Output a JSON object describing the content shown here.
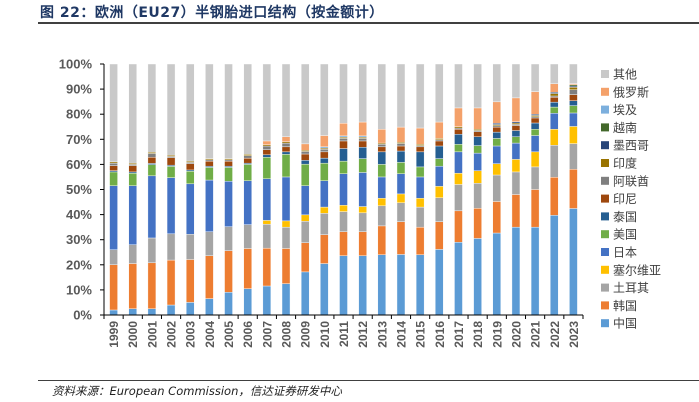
{
  "header": {
    "title": "图 22：欧洲（EU27）半钢胎进口结构（按金额计）"
  },
  "footer": {
    "source": "资料来源：European Commission，信达证券研发中心"
  },
  "chart_data": {
    "type": "bar",
    "stacked": true,
    "percent": true,
    "title": "欧洲（EU27）半钢胎进口结构（按金额计）",
    "xlabel": "",
    "ylabel": "",
    "ylim": [
      0,
      100
    ],
    "yticks": [
      "0%",
      "10%",
      "20%",
      "30%",
      "40%",
      "50%",
      "60%",
      "70%",
      "80%",
      "90%",
      "100%"
    ],
    "legend_position": "right",
    "grid": false,
    "categories": [
      "1999",
      "2000",
      "2001",
      "2002",
      "2003",
      "2004",
      "2005",
      "2006",
      "2007",
      "2008",
      "2009",
      "2010",
      "2011",
      "2012",
      "2013",
      "2014",
      "2015",
      "2016",
      "2017",
      "2018",
      "2019",
      "2020",
      "2021",
      "2022",
      "2023"
    ],
    "series": [
      {
        "name": "中国",
        "color": "#5b9bd5",
        "values": [
          2,
          2.5,
          2.5,
          4,
          5,
          6.5,
          9,
          10.5,
          11.5,
          12.5,
          17,
          20.5,
          23.5,
          23.5,
          24,
          24,
          24,
          26,
          29,
          30.5,
          32.5,
          35,
          35,
          40.5,
          43.5
        ]
      },
      {
        "name": "韩国",
        "color": "#ed7d31",
        "values": [
          18,
          18,
          18.5,
          18,
          17,
          17,
          16.5,
          16,
          15,
          14,
          11.5,
          11.5,
          9.5,
          9.5,
          11.5,
          13,
          11,
          11,
          12.5,
          12,
          12.5,
          13,
          15,
          15.5,
          16
        ]
      },
      {
        "name": "土耳其",
        "color": "#a5a5a5",
        "values": [
          6,
          7.5,
          10,
          10.5,
          10,
          9.5,
          9.5,
          9.5,
          9.5,
          8.5,
          8.5,
          8.5,
          8,
          7.5,
          8,
          7.5,
          8,
          9.5,
          10.5,
          10,
          10.5,
          9,
          9,
          13,
          10.5
        ]
      },
      {
        "name": "塞尔维亚",
        "color": "#ffc000",
        "values": [
          0,
          0,
          0,
          0,
          0,
          0,
          0,
          0,
          1.5,
          2.5,
          2.5,
          2.5,
          2.5,
          2.5,
          3,
          3.5,
          3.5,
          4.5,
          4.5,
          5,
          4.5,
          5,
          6,
          6.5,
          7
        ]
      },
      {
        "name": "日本",
        "color": "#4472c4",
        "values": [
          25.5,
          23.5,
          25,
          22.5,
          20,
          20.5,
          18,
          17.5,
          16.5,
          17.5,
          11.5,
          10.5,
          12.5,
          13.5,
          8.5,
          8,
          8.5,
          8,
          8.5,
          7,
          7,
          6.5,
          6.5,
          6.5,
          5.5
        ]
      },
      {
        "name": "美国",
        "color": "#70ad47",
        "values": [
          5.5,
          5,
          4.5,
          4.5,
          5,
          5,
          5.5,
          6.5,
          8.5,
          9,
          8.5,
          7,
          5,
          5.5,
          5,
          4.5,
          4,
          3,
          3,
          3,
          3,
          2.5,
          2.5,
          2.5,
          3
        ]
      },
      {
        "name": "泰国",
        "color": "#255e91",
        "values": [
          0.5,
          0.5,
          0.5,
          0.5,
          0.5,
          0.5,
          0.5,
          0.5,
          1,
          1,
          1.5,
          2,
          5,
          4.5,
          5,
          4.5,
          6,
          5,
          4,
          3.5,
          2.5,
          2.5,
          2.5,
          2,
          2
        ]
      },
      {
        "name": "印尼",
        "color": "#9e480e",
        "values": [
          2,
          2.5,
          2.5,
          3,
          2.5,
          2,
          2,
          2,
          2,
          2,
          2.5,
          2.5,
          3,
          2.5,
          2,
          2,
          2,
          2,
          2,
          2,
          2,
          2,
          2,
          2,
          2.5
        ]
      },
      {
        "name": "阿联酋",
        "color": "#7f7f7f",
        "values": [
          1,
          0.5,
          1.5,
          0.5,
          0.5,
          0.5,
          0.5,
          1,
          1.5,
          1.5,
          1,
          1,
          1,
          1,
          1,
          1,
          0.5,
          0.5,
          0.5,
          0.5,
          0.5,
          0.5,
          0.5,
          0.5,
          2
        ]
      },
      {
        "name": "印度",
        "color": "#997300",
        "values": [
          0.5,
          0.5,
          0.5,
          0.5,
          0.5,
          0.5,
          0.5,
          0.5,
          0.5,
          0.5,
          0.5,
          0.5,
          0.5,
          0.5,
          0.5,
          0.5,
          0.5,
          0.5,
          0.5,
          0.5,
          0.5,
          0.5,
          0.5,
          1,
          1
        ]
      },
      {
        "name": "墨西哥",
        "color": "#264478",
        "values": [
          0,
          0,
          0,
          0,
          0,
          0,
          0,
          0,
          0,
          0,
          0,
          0,
          0,
          0,
          0,
          0,
          0,
          0,
          0,
          0,
          0.5,
          0.5,
          0.5,
          0.5,
          0.5
        ]
      },
      {
        "name": "越南",
        "color": "#43682b",
        "values": [
          0,
          0,
          0,
          0,
          0,
          0,
          0,
          0,
          0,
          0,
          0,
          0,
          0,
          0,
          0,
          0,
          0,
          0,
          0,
          0,
          0,
          0,
          0,
          0,
          0.5
        ]
      },
      {
        "name": "埃及",
        "color": "#7cafdd",
        "values": [
          0,
          0,
          0,
          0,
          0,
          0,
          0,
          0,
          0,
          0,
          0,
          0.5,
          0.5,
          0.5,
          0,
          0,
          0,
          0,
          0,
          0,
          0,
          0,
          0,
          0,
          0
        ]
      },
      {
        "name": "俄罗斯",
        "color": "#f4a16a",
        "values": [
          0,
          0,
          0,
          0,
          0,
          0,
          0,
          0,
          1.5,
          2,
          2.5,
          4.5,
          5,
          5.5,
          5.5,
          6,
          6.5,
          6.5,
          7.5,
          8.5,
          8.5,
          9.5,
          9,
          3.5,
          0.5
        ]
      },
      {
        "name": "其他",
        "color": "#c9c9c9",
        "values": [
          39,
          39.5,
          35.5,
          36.5,
          38.5,
          37.5,
          37.5,
          36,
          30.5,
          29,
          31.5,
          28.5,
          23.5,
          23,
          26,
          25,
          25.5,
          23,
          17.5,
          17.5,
          15,
          13.5,
          11,
          8,
          8
        ]
      }
    ],
    "legend_order": [
      "其他",
      "俄罗斯",
      "埃及",
      "越南",
      "墨西哥",
      "印度",
      "阿联酋",
      "印尼",
      "泰国",
      "美国",
      "日本",
      "塞尔维亚",
      "土耳其",
      "韩国",
      "中国"
    ]
  }
}
